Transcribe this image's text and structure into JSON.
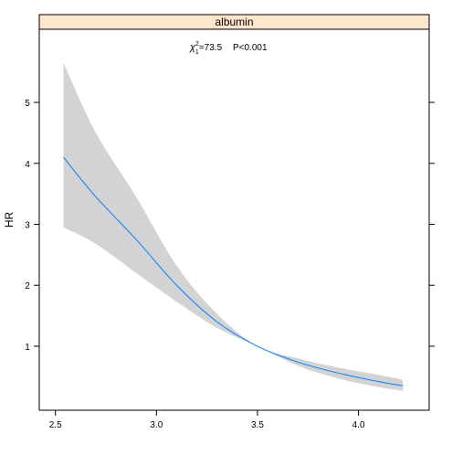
{
  "chart_data": {
    "type": "line",
    "panel_title": "albumin",
    "ylabel": "HR",
    "xlabel": "",
    "xlim": [
      2.42,
      4.35
    ],
    "ylim": [
      -0.05,
      6.2
    ],
    "x_ticks": [
      {
        "value": 2.5,
        "label": "2.5"
      },
      {
        "value": 3.0,
        "label": "3.0"
      },
      {
        "value": 3.5,
        "label": "3.5"
      },
      {
        "value": 4.0,
        "label": "4.0"
      }
    ],
    "y_ticks": [
      {
        "value": 1,
        "label": "1"
      },
      {
        "value": 2,
        "label": "2"
      },
      {
        "value": 3,
        "label": "3"
      },
      {
        "value": 4,
        "label": "4"
      },
      {
        "value": 5,
        "label": "5"
      }
    ],
    "annotation": {
      "chi_symbol": "χ",
      "chi_superscript": "2",
      "chi_subscript": "1",
      "chi_value": "=73.5",
      "p_text": "P<0.001"
    },
    "grid": false,
    "series": [
      {
        "x": [
          2.54,
          2.7,
          2.9,
          3.1,
          3.3,
          3.5,
          3.7,
          3.9,
          4.1,
          4.22
        ],
        "hr": [
          4.1,
          3.45,
          2.75,
          2.0,
          1.4,
          1.0,
          0.74,
          0.56,
          0.42,
          0.35
        ],
        "lower": [
          2.95,
          2.68,
          2.2,
          1.73,
          1.3,
          1.0,
          0.68,
          0.47,
          0.33,
          0.27
        ],
        "upper": [
          5.65,
          4.5,
          3.45,
          2.32,
          1.53,
          1.0,
          0.8,
          0.65,
          0.53,
          0.45
        ],
        "line_color": "#0080ff",
        "band_color": "#d3d3d3"
      }
    ],
    "strip_color": "#ffe5cc"
  }
}
